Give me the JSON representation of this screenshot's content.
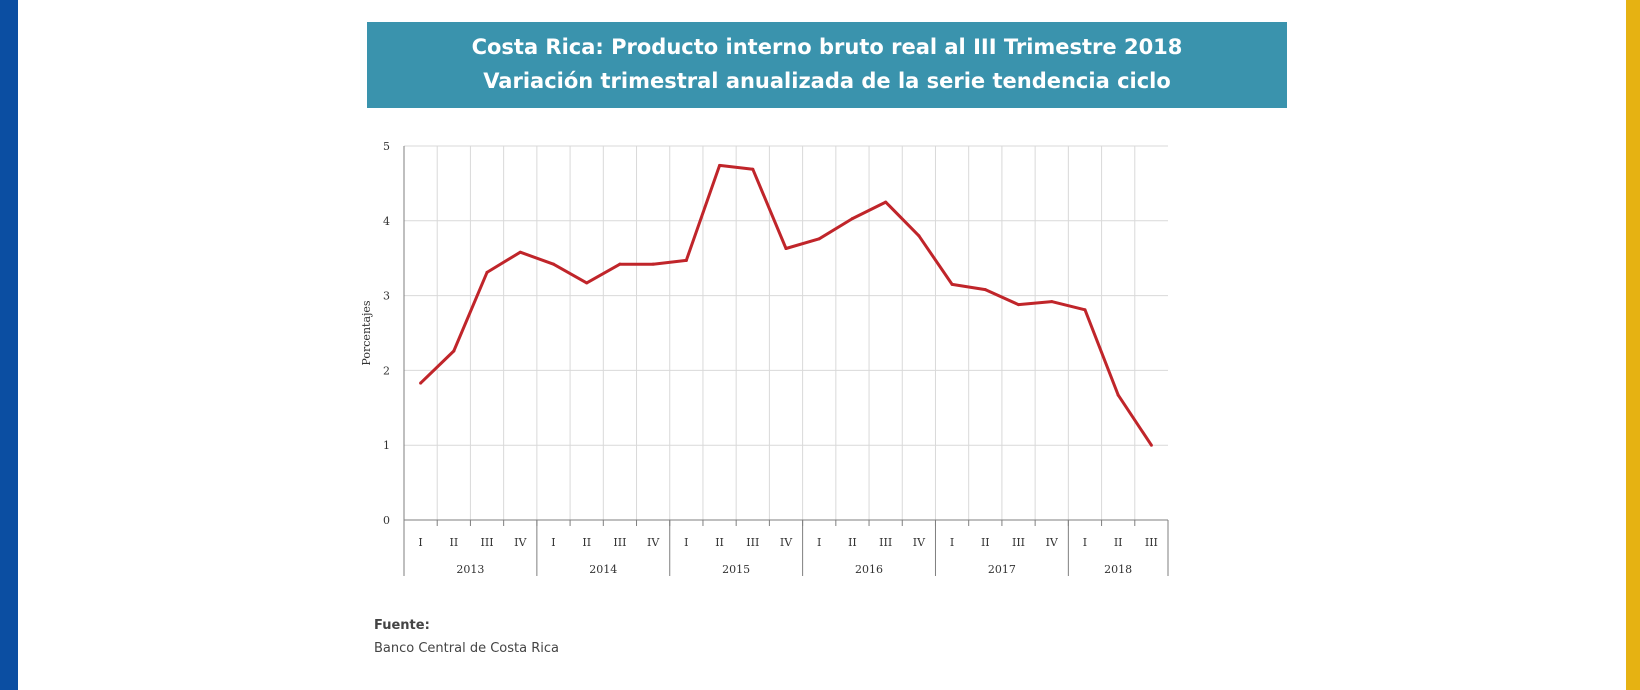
{
  "colors": {
    "left_edge": "#0b4ea2",
    "right_edge": "#e6b212",
    "title_background": "#3a93ad",
    "line": "#c0252a",
    "grid": "#d9d9d9"
  },
  "chart_data": {
    "type": "line",
    "title": "Costa Rica: Producto interno bruto real al III Trimestre 2018",
    "subtitle": "Variación trimestral anualizada de la serie tendencia ciclo",
    "xlabel": "",
    "ylabel": "Porcentajes",
    "ylim": [
      0,
      5
    ],
    "yticks": [
      0,
      1,
      2,
      3,
      4,
      5
    ],
    "grid": true,
    "legend": "none",
    "years": [
      {
        "label": "2013",
        "quarters": [
          "I",
          "II",
          "III",
          "IV"
        ]
      },
      {
        "label": "2014",
        "quarters": [
          "I",
          "II",
          "III",
          "IV"
        ]
      },
      {
        "label": "2015",
        "quarters": [
          "I",
          "II",
          "III",
          "IV"
        ]
      },
      {
        "label": "2016",
        "quarters": [
          "I",
          "II",
          "III",
          "IV"
        ]
      },
      {
        "label": "2017",
        "quarters": [
          "I",
          "II",
          "III",
          "IV"
        ]
      },
      {
        "label": "2018",
        "quarters": [
          "I",
          "II",
          "III"
        ]
      }
    ],
    "values": [
      1.83,
      2.26,
      3.31,
      3.58,
      3.42,
      3.17,
      3.42,
      3.42,
      3.47,
      4.74,
      4.69,
      3.63,
      3.76,
      4.03,
      4.25,
      3.8,
      3.15,
      3.08,
      2.88,
      2.92,
      2.81,
      1.67,
      1.0
    ]
  },
  "source": {
    "label": "Fuente:",
    "text": "Banco Central de Costa Rica"
  }
}
